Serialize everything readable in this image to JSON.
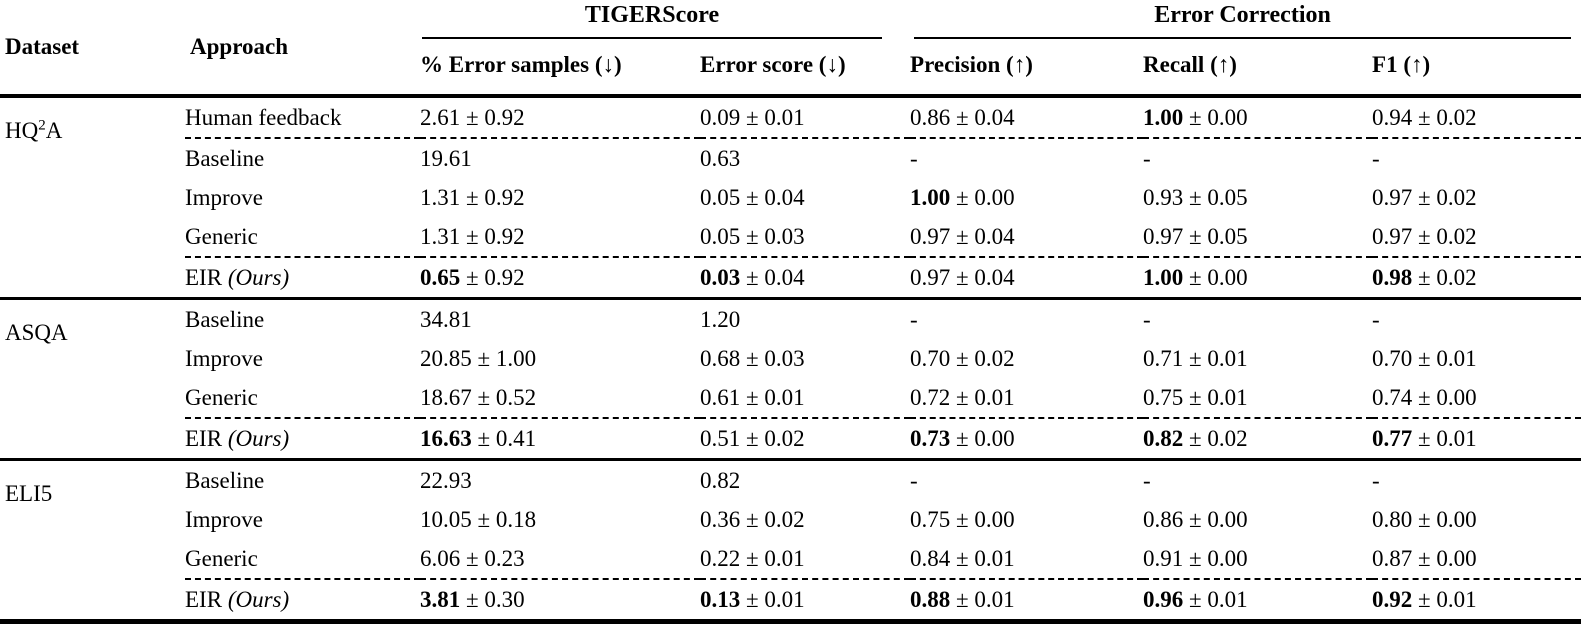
{
  "page": {
    "background_color": "#ffffff",
    "text_color": "#000000",
    "rule_color": "#000000"
  },
  "table": {
    "header": {
      "dataset": "Dataset",
      "approach": "Approach",
      "group_tigerscore": "TIGERScore",
      "group_error_correction": "Error Correction",
      "metrics": [
        "% Error samples (↓)",
        "Error score (↓)",
        "Precision (↑)",
        "Recall (↑)",
        "F1 (↑)"
      ]
    },
    "plus_minus": "±",
    "groups": [
      {
        "dataset": {
          "pre": "HQ",
          "sup": "2",
          "post": "A"
        },
        "rows": [
          {
            "approach": "Human feedback",
            "dashed_below": true,
            "cells": [
              {
                "m": "2.61",
                "s": "0.92"
              },
              {
                "m": "0.09",
                "s": "0.01"
              },
              {
                "m": "0.86",
                "s": "0.04"
              },
              {
                "m": "1.00",
                "s": "0.00",
                "b": true
              },
              {
                "m": "0.94",
                "s": "0.02"
              }
            ]
          },
          {
            "approach": "Baseline",
            "cells": [
              {
                "m": "19.61"
              },
              {
                "m": "0.63"
              },
              {
                "m": "-"
              },
              {
                "m": "-"
              },
              {
                "m": "-"
              }
            ]
          },
          {
            "approach": "Improve",
            "cells": [
              {
                "m": "1.31",
                "s": "0.92"
              },
              {
                "m": "0.05",
                "s": "0.04"
              },
              {
                "m": "1.00",
                "s": "0.00",
                "b": true
              },
              {
                "m": "0.93",
                "s": "0.05"
              },
              {
                "m": "0.97",
                "s": "0.02"
              }
            ]
          },
          {
            "approach": "Generic",
            "dashed_below": true,
            "cells": [
              {
                "m": "1.31",
                "s": "0.92"
              },
              {
                "m": "0.05",
                "s": "0.03"
              },
              {
                "m": "0.97",
                "s": "0.04"
              },
              {
                "m": "0.97",
                "s": "0.05"
              },
              {
                "m": "0.97",
                "s": "0.02"
              }
            ]
          },
          {
            "approach": "EIR",
            "approach_note": "(Ours)",
            "cells": [
              {
                "m": "0.65",
                "s": "0.92",
                "b": true
              },
              {
                "m": "0.03",
                "s": "0.04",
                "b": true
              },
              {
                "m": "0.97",
                "s": "0.04"
              },
              {
                "m": "1.00",
                "s": "0.00",
                "b": true
              },
              {
                "m": "0.98",
                "s": "0.02",
                "b": true
              }
            ]
          }
        ]
      },
      {
        "dataset": {
          "pre": "ASQA"
        },
        "rows": [
          {
            "approach": "Baseline",
            "cells": [
              {
                "m": "34.81"
              },
              {
                "m": "1.20"
              },
              {
                "m": "-"
              },
              {
                "m": "-"
              },
              {
                "m": "-"
              }
            ]
          },
          {
            "approach": "Improve",
            "cells": [
              {
                "m": "20.85",
                "s": "1.00"
              },
              {
                "m": "0.68",
                "s": "0.03"
              },
              {
                "m": "0.70",
                "s": "0.02"
              },
              {
                "m": "0.71",
                "s": "0.01"
              },
              {
                "m": "0.70",
                "s": "0.01"
              }
            ]
          },
          {
            "approach": "Generic",
            "dashed_below": true,
            "cells": [
              {
                "m": "18.67",
                "s": "0.52"
              },
              {
                "m": "0.61",
                "s": "0.01"
              },
              {
                "m": "0.72",
                "s": "0.01"
              },
              {
                "m": "0.75",
                "s": "0.01"
              },
              {
                "m": "0.74",
                "s": "0.00"
              }
            ]
          },
          {
            "approach": "EIR",
            "approach_note": "(Ours)",
            "cells": [
              {
                "m": "16.63",
                "s": "0.41",
                "b": true
              },
              {
                "m": "0.51",
                "s": "0.02"
              },
              {
                "m": "0.73",
                "s": "0.00",
                "b": true
              },
              {
                "m": "0.82",
                "s": "0.02",
                "b": true
              },
              {
                "m": "0.77",
                "s": "0.01",
                "b": true
              }
            ]
          }
        ]
      },
      {
        "dataset": {
          "pre": "ELI5"
        },
        "rows": [
          {
            "approach": "Baseline",
            "cells": [
              {
                "m": "22.93"
              },
              {
                "m": "0.82"
              },
              {
                "m": "-"
              },
              {
                "m": "-"
              },
              {
                "m": "-"
              }
            ]
          },
          {
            "approach": "Improve",
            "cells": [
              {
                "m": "10.05",
                "s": "0.18"
              },
              {
                "m": "0.36",
                "s": "0.02"
              },
              {
                "m": "0.75",
                "s": "0.00"
              },
              {
                "m": "0.86",
                "s": "0.00"
              },
              {
                "m": "0.80",
                "s": "0.00"
              }
            ]
          },
          {
            "approach": "Generic",
            "dashed_below": true,
            "cells": [
              {
                "m": "6.06",
                "s": "0.23"
              },
              {
                "m": "0.22",
                "s": "0.01"
              },
              {
                "m": "0.84",
                "s": "0.01"
              },
              {
                "m": "0.91",
                "s": "0.00"
              },
              {
                "m": "0.87",
                "s": "0.00"
              }
            ]
          },
          {
            "approach": "EIR",
            "approach_note": "(Ours)",
            "cells": [
              {
                "m": "3.81",
                "s": "0.30",
                "b": true
              },
              {
                "m": "0.13",
                "s": "0.01",
                "b": true
              },
              {
                "m": "0.88",
                "s": "0.01",
                "b": true
              },
              {
                "m": "0.96",
                "s": "0.01",
                "b": true
              },
              {
                "m": "0.92",
                "s": "0.01",
                "b": true
              }
            ]
          }
        ]
      }
    ]
  }
}
